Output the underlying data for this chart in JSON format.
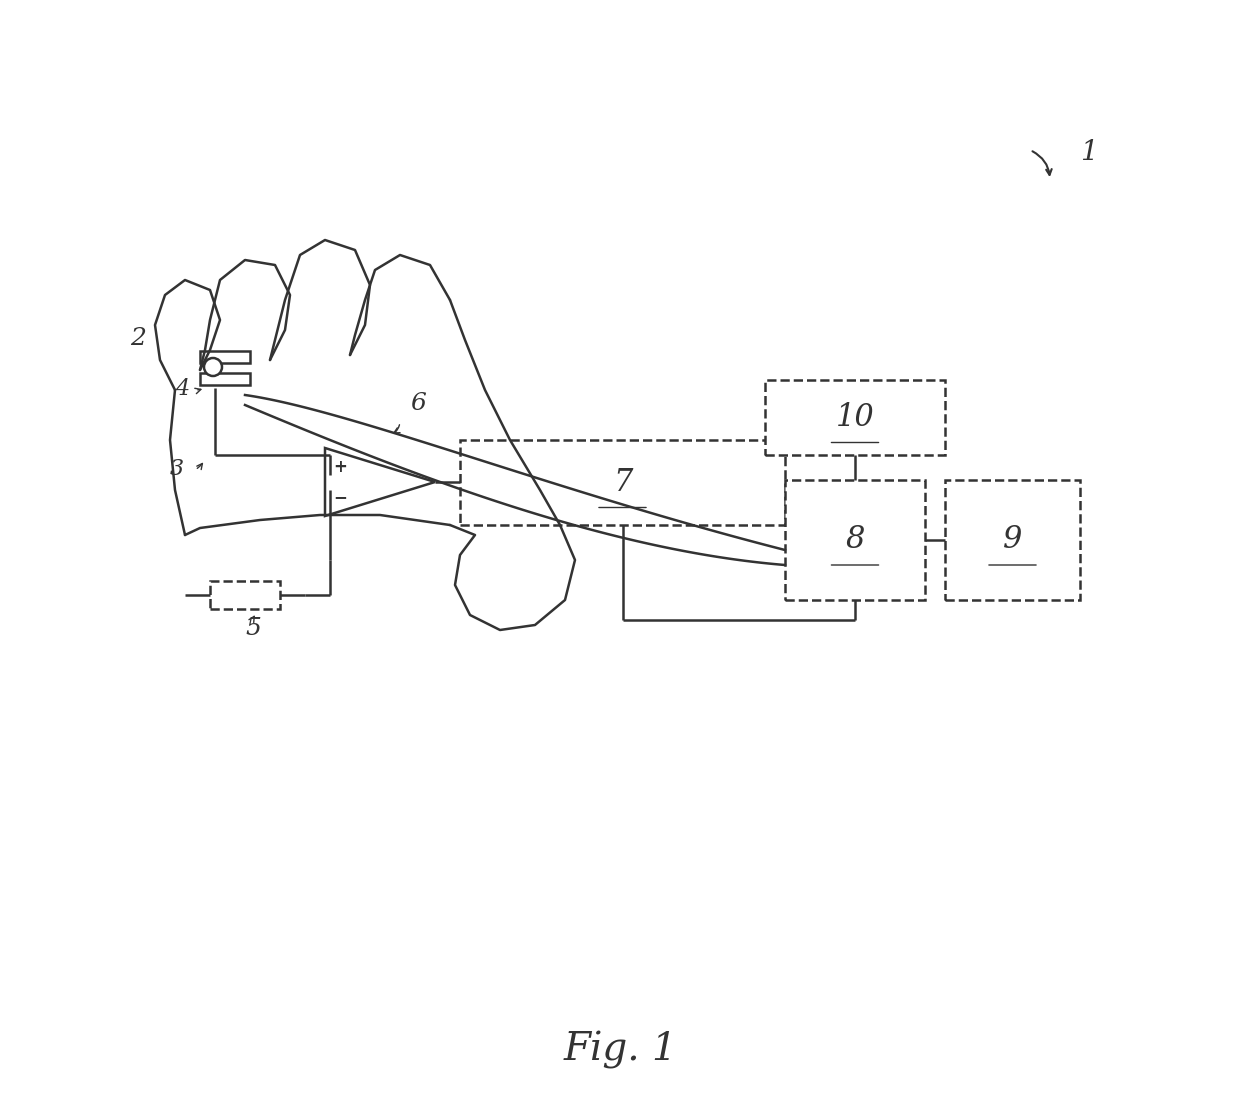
{
  "background_color": "#ffffff",
  "line_color": "#333333",
  "line_width": 1.8,
  "fig_width": 12.4,
  "fig_height": 11.1,
  "title": "Fig. 1",
  "label_1": "1",
  "label_2": "2",
  "label_3": "3",
  "label_4": "4",
  "label_5": "5",
  "label_6": "6",
  "label_7": "7",
  "label_8": "8",
  "label_9": "9",
  "label_10": "10"
}
